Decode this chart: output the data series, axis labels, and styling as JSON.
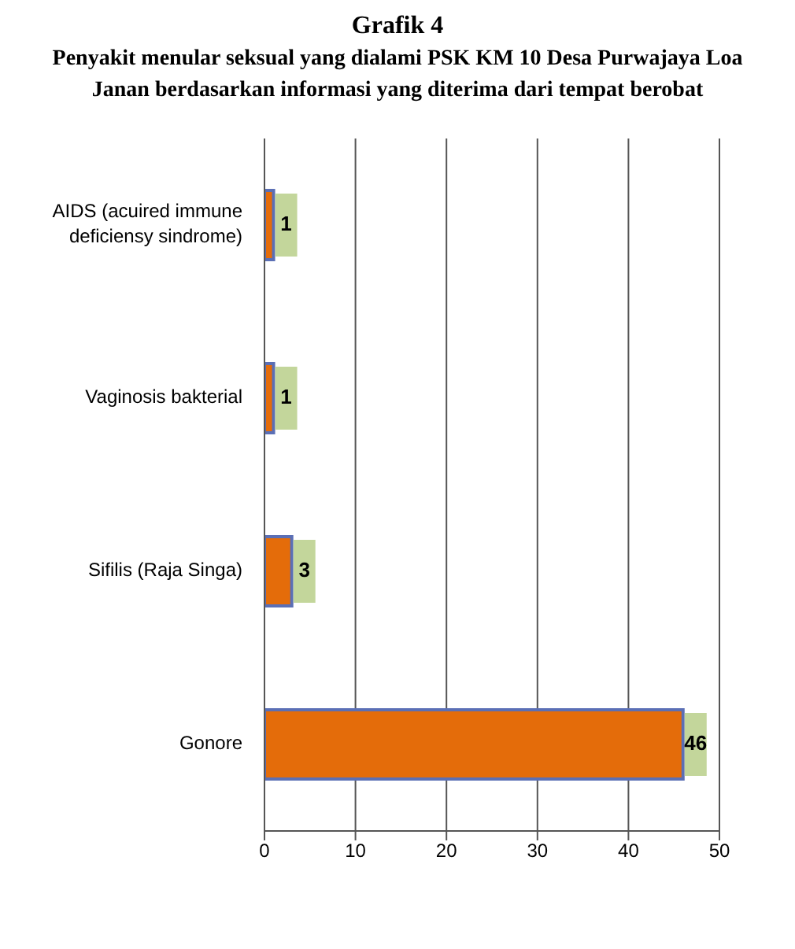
{
  "chart_data": {
    "type": "bar",
    "orientation": "horizontal",
    "title": "Grafik 4",
    "subtitle": "Penyakit menular seksual yang dialami PSK KM 10 Desa Purwajaya Loa Janan berdasarkan informasi yang diterima dari tempat berobat",
    "categories": [
      "AIDS (acuired immune deficiensy sindrome)",
      "Vaginosis bakterial",
      "Sifilis (Raja Singa)",
      "Gonore"
    ],
    "values": [
      1,
      1,
      3,
      46
    ],
    "color": "#e46c0a",
    "xlim": [
      0,
      50
    ],
    "xticks": [
      0,
      10,
      20,
      30,
      40,
      50
    ],
    "grid": "x",
    "data_labels": true
  }
}
